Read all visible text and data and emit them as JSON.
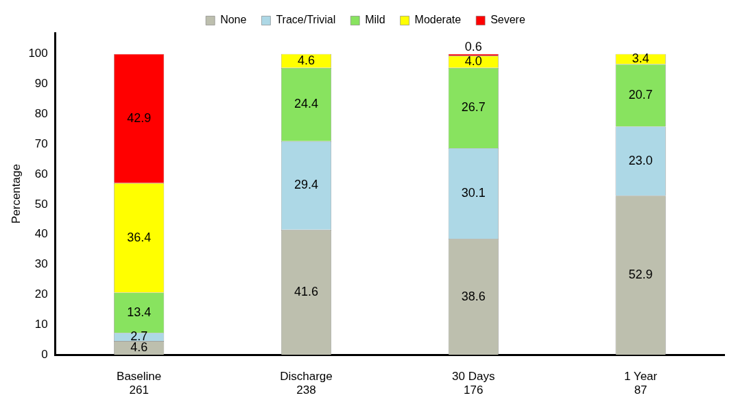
{
  "chart_data": {
    "type": "bar",
    "stacked": true,
    "ylabel": "Percentage",
    "categories": [
      "Baseline\n261",
      "Discharge\n238",
      "30 Days\n176",
      "1 Year\n87"
    ],
    "series": [
      {
        "name": "None",
        "color": "#bdbfae",
        "values": [
          4.6,
          41.6,
          38.6,
          52.9
        ],
        "value_labels": [
          "4.6",
          "41.6",
          "38.6",
          "52.9"
        ]
      },
      {
        "name": "Trace/Trivial",
        "color": "#add8e6",
        "values": [
          2.7,
          29.4,
          30.1,
          23.0
        ],
        "value_labels": [
          "2.7",
          "29.4",
          "30.1",
          "23.0"
        ]
      },
      {
        "name": "Mild",
        "color": "#88e35f",
        "values": [
          13.4,
          24.4,
          26.7,
          20.7
        ],
        "value_labels": [
          "13.4",
          "24.4",
          "26.7",
          "20.7"
        ]
      },
      {
        "name": "Moderate",
        "color": "#ffff00",
        "values": [
          36.4,
          4.6,
          4.0,
          3.4
        ],
        "value_labels": [
          "36.4",
          "4.6",
          "4.0",
          "3.4"
        ]
      },
      {
        "name": "Severe",
        "color": "#ff0000",
        "values": [
          42.9,
          null,
          0.6,
          null
        ],
        "value_labels": [
          "42.9",
          null,
          "0.6",
          null
        ]
      }
    ],
    "ylim": [
      0,
      107
    ],
    "yticks": [
      0,
      10,
      20,
      30,
      40,
      50,
      60,
      70,
      80,
      90,
      100
    ],
    "grid": false,
    "legend": "top"
  }
}
